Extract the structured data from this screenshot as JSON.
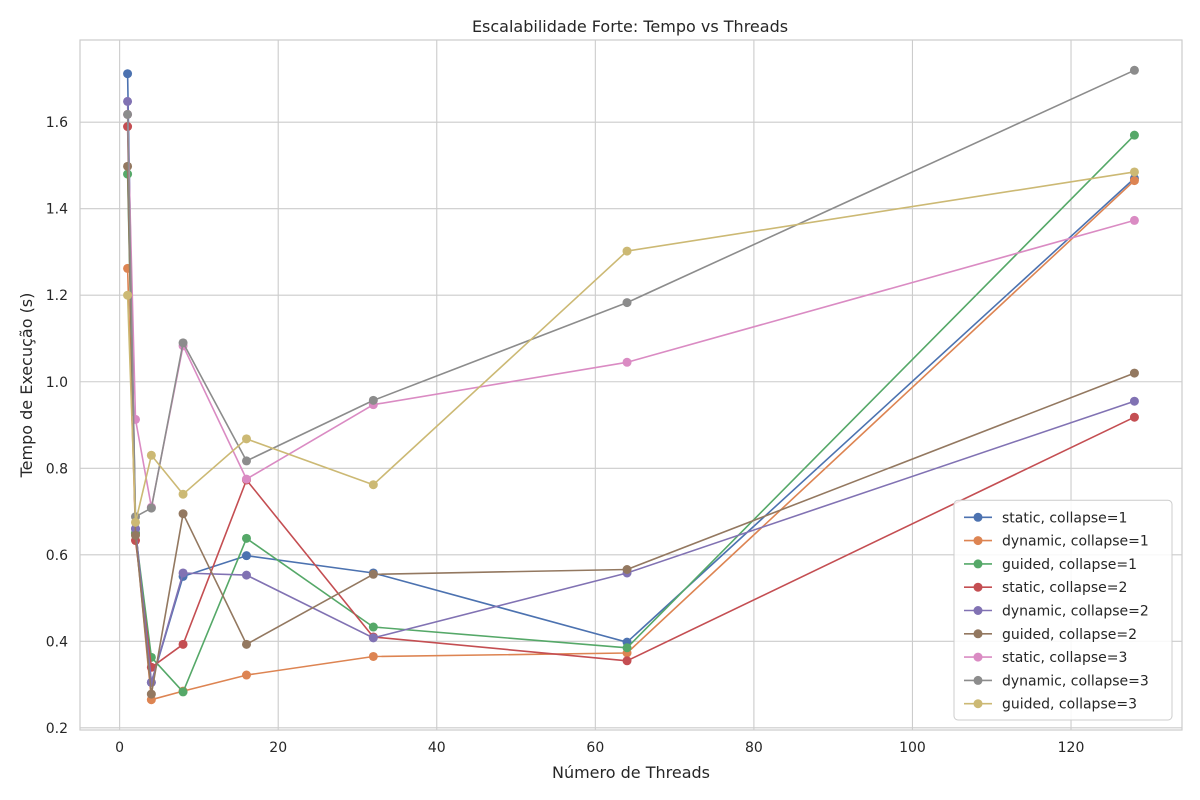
{
  "chart_data": {
    "type": "line",
    "title": "Escalabilidade Forte: Tempo vs Threads",
    "xlabel": "Número de Threads",
    "ylabel": "Tempo de Execução (s)",
    "xlim": [
      -5,
      134
    ],
    "ylim": [
      0.195,
      1.79
    ],
    "xticks": [
      0,
      20,
      40,
      60,
      80,
      100,
      120
    ],
    "yticks": [
      0.2,
      0.4,
      0.6,
      0.8,
      1.0,
      1.2,
      1.4,
      1.6
    ],
    "ytick_labels": [
      "0.2",
      "0.4",
      "0.6",
      "0.8",
      "1.0",
      "1.2",
      "1.4",
      "1.6"
    ],
    "grid": true,
    "legend_position": "bottom-right",
    "x": [
      1,
      2,
      4,
      8,
      16,
      32,
      64,
      128
    ],
    "series": [
      {
        "name": "static, collapse=1",
        "color": "#4c72b0",
        "values": [
          1.712,
          0.66,
          0.305,
          0.55,
          0.598,
          0.558,
          0.398,
          1.47
        ]
      },
      {
        "name": "dynamic, collapse=1",
        "color": "#dd8452",
        "values": [
          1.262,
          0.65,
          0.265,
          0.285,
          0.322,
          0.365,
          0.373,
          1.465
        ]
      },
      {
        "name": "guided, collapse=1",
        "color": "#55a868",
        "values": [
          1.48,
          0.65,
          0.363,
          0.283,
          0.638,
          0.433,
          0.385,
          1.57
        ]
      },
      {
        "name": "static, collapse=2",
        "color": "#c44e52",
        "values": [
          1.59,
          0.633,
          0.34,
          0.393,
          0.773,
          0.41,
          0.355,
          0.918
        ]
      },
      {
        "name": "dynamic, collapse=2",
        "color": "#8172b3",
        "values": [
          1.648,
          0.66,
          0.305,
          0.558,
          0.553,
          0.408,
          0.558,
          0.955
        ]
      },
      {
        "name": "guided, collapse=2",
        "color": "#937860",
        "values": [
          1.498,
          0.645,
          0.278,
          0.695,
          0.393,
          0.555,
          0.566,
          1.02
        ]
      },
      {
        "name": "static, collapse=3",
        "color": "#da8bc3",
        "values": [
          1.618,
          0.913,
          0.71,
          1.083,
          0.775,
          0.947,
          1.045,
          1.373
        ]
      },
      {
        "name": "dynamic, collapse=3",
        "color": "#8c8c8c",
        "values": [
          1.618,
          0.688,
          0.708,
          1.09,
          0.817,
          0.957,
          1.183,
          1.72
        ]
      },
      {
        "name": "guided, collapse=3",
        "color": "#ccb974",
        "values": [
          1.2,
          0.675,
          0.83,
          0.74,
          0.868,
          0.762,
          1.302,
          1.485
        ]
      }
    ]
  }
}
